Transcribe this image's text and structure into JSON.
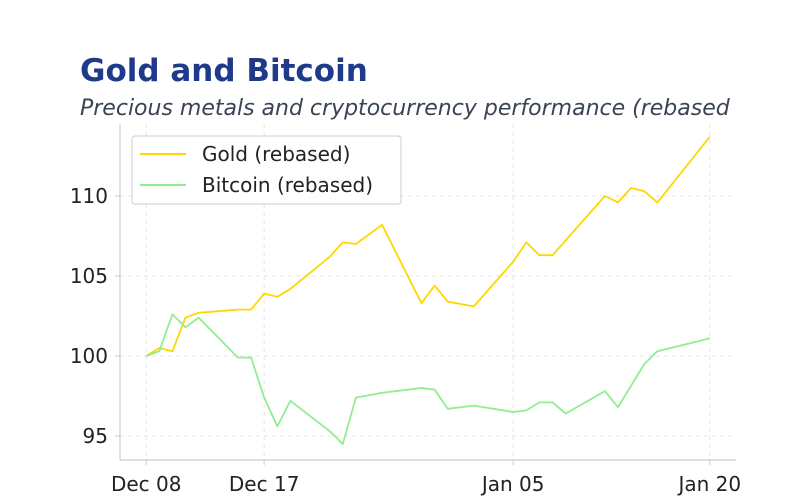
{
  "title": "Gold and Bitcoin",
  "subtitle": "Precious metals and cryptocurrency performance (rebased",
  "colors": {
    "title": "#1f3a8a",
    "subtitle": "#3a4454",
    "gold": "#ffd700",
    "bitcoin": "#90ee90",
    "grid": "#e6e6e6",
    "axis": "#cccccc"
  },
  "chart_data": {
    "type": "line",
    "title": "Gold and Bitcoin",
    "subtitle": "Precious metals and cryptocurrency performance (rebased",
    "xlabel": "",
    "ylabel": "",
    "x_axis": "date",
    "xlim": [
      "2023-12-06",
      "2024-01-22"
    ],
    "ylim": [
      93.5,
      114.5
    ],
    "x_ticks": [
      {
        "date": "2023-12-08",
        "label": "Dec 08"
      },
      {
        "date": "2023-12-17",
        "label": "Dec 17"
      },
      {
        "date": "2024-01-05",
        "label": "Jan 05"
      },
      {
        "date": "2024-01-20",
        "label": "Jan 20"
      }
    ],
    "y_ticks": [
      95,
      100,
      105,
      110
    ],
    "grid": true,
    "legend": "top-left",
    "series": [
      {
        "name": "Gold (rebased)",
        "color": "#ffd700",
        "points": [
          [
            "2023-12-08",
            100.0
          ],
          [
            "2023-12-09",
            100.5
          ],
          [
            "2023-12-10",
            100.3
          ],
          [
            "2023-12-11",
            102.4
          ],
          [
            "2023-12-12",
            102.7
          ],
          [
            "2023-12-15",
            102.9
          ],
          [
            "2023-12-16",
            102.9
          ],
          [
            "2023-12-17",
            103.9
          ],
          [
            "2023-12-18",
            103.7
          ],
          [
            "2023-12-19",
            104.2
          ],
          [
            "2023-12-22",
            106.2
          ],
          [
            "2023-12-23",
            107.1
          ],
          [
            "2023-12-24",
            107.0
          ],
          [
            "2023-12-26",
            108.2
          ],
          [
            "2023-12-29",
            103.3
          ],
          [
            "2023-12-30",
            104.4
          ],
          [
            "2023-12-31",
            103.4
          ],
          [
            "2024-01-02",
            103.1
          ],
          [
            "2024-01-05",
            105.9
          ],
          [
            "2024-01-06",
            107.1
          ],
          [
            "2024-01-07",
            106.3
          ],
          [
            "2024-01-08",
            106.3
          ],
          [
            "2024-01-12",
            110.0
          ],
          [
            "2024-01-13",
            109.6
          ],
          [
            "2024-01-14",
            110.5
          ],
          [
            "2024-01-15",
            110.3
          ],
          [
            "2024-01-16",
            109.6
          ],
          [
            "2024-01-20",
            113.7
          ]
        ]
      },
      {
        "name": "Bitcoin (rebased)",
        "color": "#90ee90",
        "points": [
          [
            "2023-12-08",
            100.0
          ],
          [
            "2023-12-09",
            100.3
          ],
          [
            "2023-12-10",
            102.6
          ],
          [
            "2023-12-11",
            101.8
          ],
          [
            "2023-12-12",
            102.4
          ],
          [
            "2023-12-15",
            99.9
          ],
          [
            "2023-12-16",
            99.9
          ],
          [
            "2023-12-17",
            97.4
          ],
          [
            "2023-12-18",
            95.6
          ],
          [
            "2023-12-19",
            97.2
          ],
          [
            "2023-12-22",
            95.3
          ],
          [
            "2023-12-23",
            94.5
          ],
          [
            "2023-12-24",
            97.4
          ],
          [
            "2023-12-26",
            97.7
          ],
          [
            "2023-12-29",
            98.0
          ],
          [
            "2023-12-30",
            97.9
          ],
          [
            "2023-12-31",
            96.7
          ],
          [
            "2024-01-02",
            96.9
          ],
          [
            "2024-01-05",
            96.5
          ],
          [
            "2024-01-06",
            96.6
          ],
          [
            "2024-01-07",
            97.1
          ],
          [
            "2024-01-08",
            97.1
          ],
          [
            "2024-01-09",
            96.4
          ],
          [
            "2024-01-12",
            97.8
          ],
          [
            "2024-01-13",
            96.8
          ],
          [
            "2024-01-15",
            99.5
          ],
          [
            "2024-01-16",
            100.3
          ],
          [
            "2024-01-20",
            101.1
          ]
        ]
      }
    ]
  }
}
